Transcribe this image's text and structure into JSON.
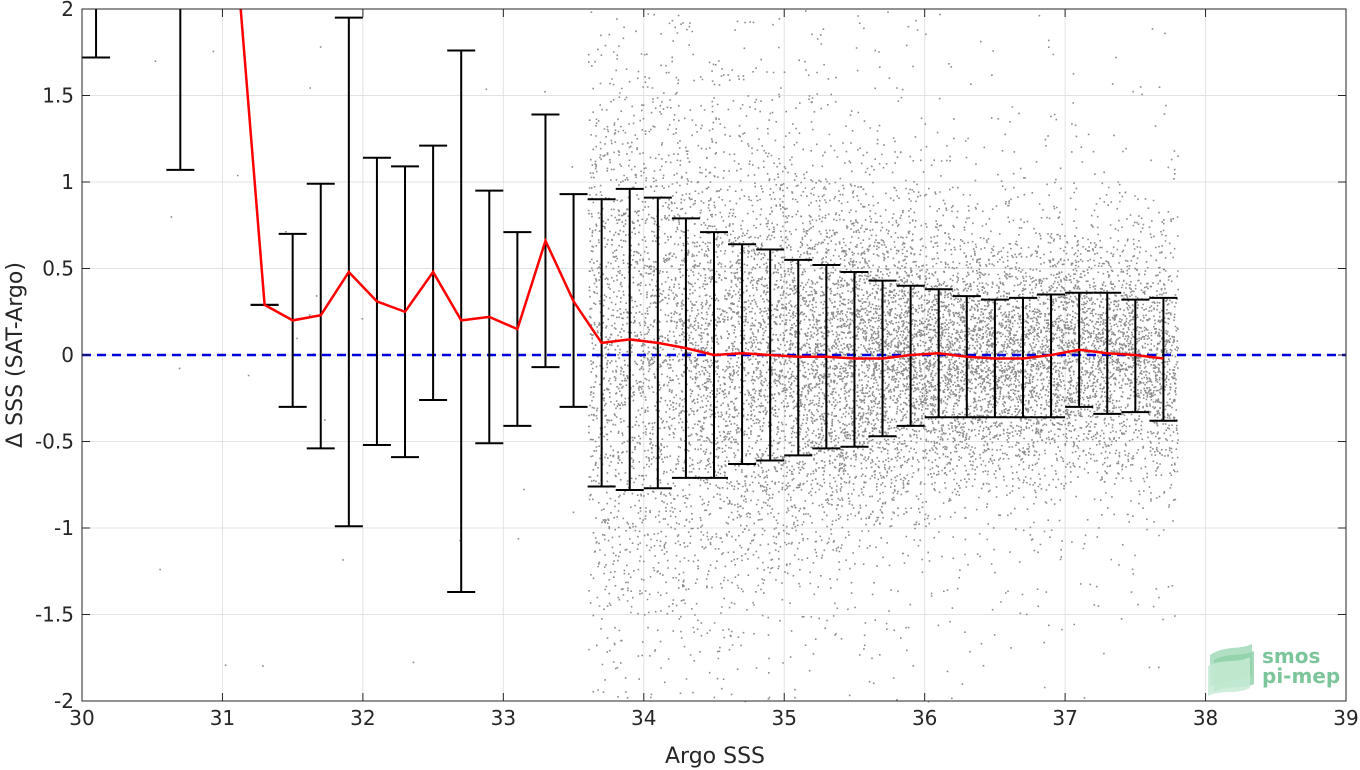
{
  "chart_data": {
    "type": "scatter",
    "title": "",
    "xlabel": "Argo SSS",
    "ylabel": "Δ SSS (SAT-Argo)",
    "xlim": [
      30,
      39
    ],
    "ylim": [
      -2,
      2
    ],
    "x_ticks": [
      30,
      31,
      32,
      33,
      34,
      35,
      36,
      37,
      38,
      39
    ],
    "y_ticks": [
      -2,
      -1.5,
      -1,
      -0.5,
      0,
      0.5,
      1,
      1.5,
      2
    ],
    "x_tick_labels": [
      "30",
      "31",
      "32",
      "33",
      "34",
      "35",
      "36",
      "37",
      "38",
      "39"
    ],
    "y_tick_labels": [
      "-2",
      "-1.5",
      "-1",
      "-0.5",
      "0",
      "0.5",
      "1",
      "1.5",
      "2"
    ],
    "grid": true,
    "legend": "none",
    "colors": {
      "scatter": "#8c8c8c",
      "mean_line": "#ff0000",
      "error_bars": "#000000",
      "zero_line": "#0000dd",
      "logo": "#7cc59a"
    },
    "zero_line": 0,
    "bins": [
      {
        "x": 30.1,
        "mean": null,
        "low": 1.72,
        "high": 2.3
      },
      {
        "x": 30.7,
        "mean": null,
        "low": 1.07,
        "high": 2.3
      },
      {
        "x": 31.1,
        "mean": 2.3,
        "low": null,
        "high": null
      },
      {
        "x": 31.3,
        "mean": 0.29,
        "low": 0.29,
        "high": 0.29
      },
      {
        "x": 31.5,
        "mean": 0.2,
        "low": -0.3,
        "high": 0.7
      },
      {
        "x": 31.7,
        "mean": 0.23,
        "low": -0.54,
        "high": 0.99
      },
      {
        "x": 31.9,
        "mean": 0.48,
        "low": -0.99,
        "high": 1.95
      },
      {
        "x": 32.1,
        "mean": 0.31,
        "low": -0.52,
        "high": 1.14
      },
      {
        "x": 32.3,
        "mean": 0.25,
        "low": -0.59,
        "high": 1.09
      },
      {
        "x": 32.5,
        "mean": 0.48,
        "low": -0.26,
        "high": 1.21
      },
      {
        "x": 32.7,
        "mean": 0.2,
        "low": -1.37,
        "high": 1.76
      },
      {
        "x": 32.9,
        "mean": 0.22,
        "low": -0.51,
        "high": 0.95
      },
      {
        "x": 33.1,
        "mean": 0.15,
        "low": -0.41,
        "high": 0.71
      },
      {
        "x": 33.3,
        "mean": 0.66,
        "low": -0.07,
        "high": 1.39
      },
      {
        "x": 33.5,
        "mean": 0.31,
        "low": -0.3,
        "high": 0.93
      },
      {
        "x": 33.7,
        "mean": 0.07,
        "low": -0.76,
        "high": 0.9
      },
      {
        "x": 33.9,
        "mean": 0.09,
        "low": -0.78,
        "high": 0.96
      },
      {
        "x": 34.1,
        "mean": 0.07,
        "low": -0.77,
        "high": 0.91
      },
      {
        "x": 34.3,
        "mean": 0.04,
        "low": -0.71,
        "high": 0.79
      },
      {
        "x": 34.5,
        "mean": 0.0,
        "low": -0.71,
        "high": 0.71
      },
      {
        "x": 34.7,
        "mean": 0.01,
        "low": -0.63,
        "high": 0.64
      },
      {
        "x": 34.9,
        "mean": 0.0,
        "low": -0.61,
        "high": 0.61
      },
      {
        "x": 35.1,
        "mean": -0.01,
        "low": -0.58,
        "high": 0.55
      },
      {
        "x": 35.3,
        "mean": -0.01,
        "low": -0.54,
        "high": 0.52
      },
      {
        "x": 35.5,
        "mean": -0.02,
        "low": -0.53,
        "high": 0.48
      },
      {
        "x": 35.7,
        "mean": -0.02,
        "low": -0.47,
        "high": 0.43
      },
      {
        "x": 35.9,
        "mean": 0.0,
        "low": -0.41,
        "high": 0.4
      },
      {
        "x": 36.1,
        "mean": 0.01,
        "low": -0.36,
        "high": 0.38
      },
      {
        "x": 36.3,
        "mean": -0.01,
        "low": -0.36,
        "high": 0.34
      },
      {
        "x": 36.5,
        "mean": -0.02,
        "low": -0.36,
        "high": 0.32
      },
      {
        "x": 36.7,
        "mean": -0.02,
        "low": -0.36,
        "high": 0.33
      },
      {
        "x": 36.9,
        "mean": 0.0,
        "low": -0.36,
        "high": 0.35
      },
      {
        "x": 37.1,
        "mean": 0.03,
        "low": -0.3,
        "high": 0.36
      },
      {
        "x": 37.3,
        "mean": 0.01,
        "low": -0.34,
        "high": 0.36
      },
      {
        "x": 37.5,
        "mean": 0.0,
        "low": -0.33,
        "high": 0.32
      },
      {
        "x": 37.7,
        "mean": -0.02,
        "low": -0.38,
        "high": 0.33
      }
    ]
  },
  "logo": {
    "line1": "smos",
    "line2": "pi-mep"
  }
}
